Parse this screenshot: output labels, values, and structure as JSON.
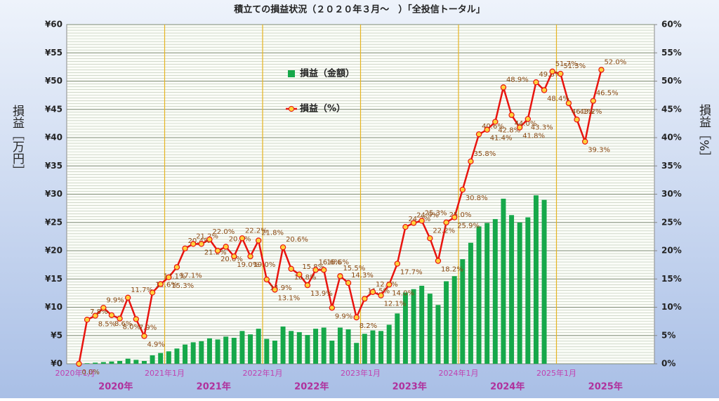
{
  "chart_data": {
    "type": "bar-line",
    "title": "積立ての損益状況（２０２０年３月～　）「全投信トータル」",
    "ylabel": "損益［万円］",
    "y2label": "損益［%］",
    "categories": [
      "2020年1月",
      null,
      null,
      null,
      null,
      null,
      null,
      null,
      null,
      null,
      null,
      null,
      "2021年1月",
      null,
      null,
      null,
      null,
      null,
      null,
      null,
      null,
      null,
      null,
      null,
      "2022年1月",
      null,
      null,
      null,
      null,
      null,
      null,
      null,
      null,
      null,
      null,
      null,
      "2023年1月",
      null,
      null,
      null,
      null,
      null,
      null,
      null,
      null,
      null,
      null,
      null,
      "2024年1月",
      null,
      null,
      null,
      null,
      null,
      null,
      null,
      null,
      null,
      null,
      null,
      "2025年1月",
      null,
      null,
      null,
      null,
      null,
      null,
      null,
      null,
      null,
      null,
      null
    ],
    "year_labels": [
      "2020年",
      "2021年",
      "2022年",
      "2023年",
      "2024年",
      "2025年"
    ],
    "series": [
      {
        "name": "損益（金額）",
        "type": "bar",
        "color": "#16a84a",
        "values": [
          null,
          0,
          0.1,
          0.2,
          0.3,
          0.4,
          0.5,
          0.9,
          0.7,
          0.5,
          1.5,
          1.9,
          2.2,
          2.7,
          3.4,
          3.8,
          4.0,
          4.5,
          4.3,
          4.8,
          4.6,
          5.8,
          5.2,
          6.2,
          4.4,
          4.1,
          6.6,
          5.8,
          5.6,
          5.1,
          6.2,
          6.4,
          4.1,
          6.4,
          6.1,
          3.7,
          5.3,
          5.9,
          5.8,
          6.9,
          8.9,
          12.6,
          13.2,
          13.8,
          12.4,
          10.4,
          14.6,
          15.5,
          18.5,
          21.4,
          24.3,
          24.9,
          25.6,
          29.2,
          26.3,
          25.0,
          25.9,
          29.8,
          29.0,
          null,
          null,
          null,
          null,
          null,
          null,
          null,
          null,
          null,
          null,
          null,
          null,
          null
        ]
      },
      {
        "name": "損益（%）",
        "type": "line",
        "axis": "y2",
        "color": "#e8140f",
        "marker_color": "#ffd23c",
        "values": [
          null,
          0.0,
          7.8,
          8.5,
          9.9,
          8.6,
          8.0,
          11.7,
          7.9,
          4.9,
          12.6,
          14.1,
          15.3,
          17.1,
          20.4,
          21.2,
          21.2,
          22.0,
          20.0,
          20.7,
          19.0,
          22.2,
          19.0,
          21.8,
          14.9,
          13.1,
          20.6,
          16.8,
          15.8,
          13.9,
          16.6,
          16.6,
          9.9,
          15.5,
          14.3,
          8.2,
          11.5,
          12.7,
          12.1,
          14.0,
          17.7,
          24.2,
          24.9,
          25.3,
          22.2,
          18.2,
          25.0,
          25.9,
          30.8,
          35.8,
          40.6,
          41.4,
          42.8,
          48.9,
          44.0,
          41.8,
          43.3,
          49.8,
          48.4,
          51.7,
          51.3,
          46.1,
          43.2,
          39.3,
          46.5,
          52.0,
          null,
          null,
          null,
          null,
          null,
          null
        ],
        "value_labels": [
          null,
          "0.0%",
          "7.8%",
          "8.5%",
          "9.9%",
          "8.6%",
          "8.0%",
          "11.7%",
          "7.9%",
          "4.9%",
          "12.6%",
          "14.1%",
          "15.3%",
          "17.1%",
          "20.4%",
          "21.2%",
          "21.2%",
          "22.0%",
          "20.0%",
          "20.7%",
          "19.0%",
          "22.2%",
          "19.0%",
          "21.8%",
          "14.9%",
          "13.1%",
          "20.6%",
          "16.8%",
          "15.8%",
          "13.9%",
          "16.6%",
          "16.6%",
          "9.9%",
          "15.5%",
          "14.3%",
          "8.2%",
          "11.5%",
          "12.7%",
          "12.1%",
          "14.0%",
          "17.7%",
          "24.2%",
          "24.9%",
          "25.3%",
          "22.2%",
          "18.2%",
          "25.0%",
          "25.9%",
          "30.8%",
          "35.8%",
          "40.6%",
          "41.4%",
          "42.8%",
          "48.9%",
          "44.0%",
          "41.8%",
          "43.3%",
          "49.8%",
          "48.4%",
          "51.7%",
          "51.3%",
          "46.1%",
          "43.2%",
          "39.3%",
          "46.5%",
          "52.0%",
          null,
          null,
          null,
          null,
          null,
          null
        ]
      }
    ],
    "ylim": [
      0,
      60
    ],
    "yticks": [
      {
        "value": 0,
        "label": "¥0"
      },
      {
        "value": 5,
        "label": "¥5"
      },
      {
        "value": 10,
        "label": "¥10"
      },
      {
        "value": 15,
        "label": "¥15"
      },
      {
        "value": 20,
        "label": "¥20"
      },
      {
        "value": 25,
        "label": "¥25"
      },
      {
        "value": 30,
        "label": "¥30"
      },
      {
        "value": 35,
        "label": "¥35"
      },
      {
        "value": 40,
        "label": "¥40"
      },
      {
        "value": 45,
        "label": "¥45"
      },
      {
        "value": 50,
        "label": "¥50"
      },
      {
        "value": 55,
        "label": "¥55"
      },
      {
        "value": 60,
        "label": "¥60"
      }
    ],
    "y2lim": [
      0,
      60
    ],
    "y2ticks": [
      {
        "value": 0,
        "label": "0%"
      },
      {
        "value": 5,
        "label": "5%"
      },
      {
        "value": 10,
        "label": "10%"
      },
      {
        "value": 15,
        "label": "15%"
      },
      {
        "value": 20,
        "label": "20%"
      },
      {
        "value": 25,
        "label": "25%"
      },
      {
        "value": 30,
        "label": "30%"
      },
      {
        "value": 35,
        "label": "35%"
      },
      {
        "value": 40,
        "label": "40%"
      },
      {
        "value": 45,
        "label": "45%"
      },
      {
        "value": 50,
        "label": "50%"
      },
      {
        "value": 55,
        "label": "55%"
      },
      {
        "value": 60,
        "label": "60%"
      }
    ],
    "grid": true
  }
}
